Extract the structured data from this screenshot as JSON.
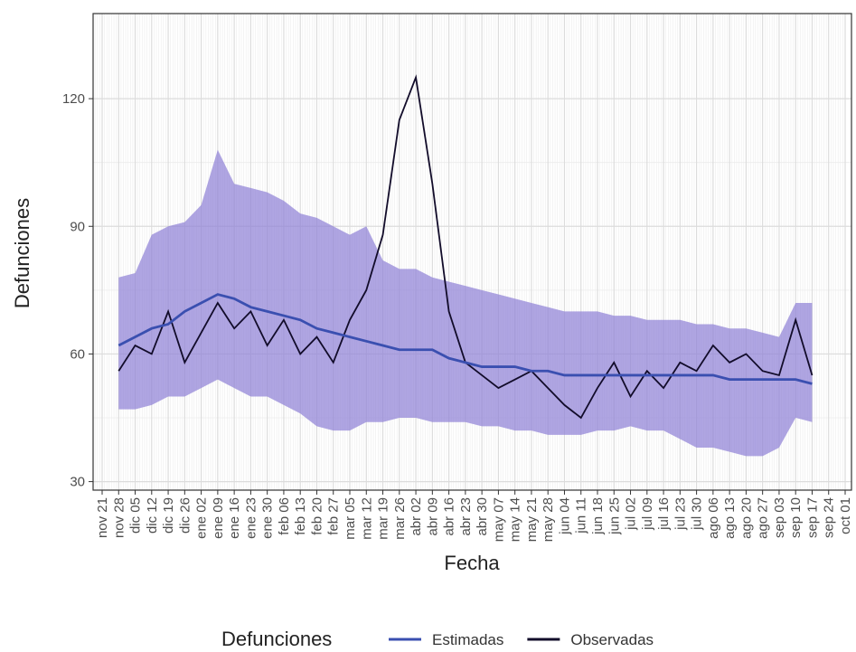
{
  "chart_data": {
    "type": "line",
    "x_label": "Fecha",
    "y_label": "Defunciones",
    "legend_title": "Defunciones",
    "legend_position": "bottom",
    "grid": true,
    "xticks": [
      "nov 21",
      "nov 28",
      "dic 05",
      "dic 12",
      "dic 19",
      "dic 26",
      "ene 02",
      "ene 09",
      "ene 16",
      "ene 23",
      "ene 30",
      "feb 06",
      "feb 13",
      "feb 20",
      "feb 27",
      "mar 05",
      "mar 12",
      "mar 19",
      "mar 26",
      "abr 02",
      "abr 09",
      "abr 16",
      "abr 23",
      "abr 30",
      "may 07",
      "may 14",
      "may 21",
      "may 28",
      "jun 04",
      "jun 11",
      "jun 18",
      "jun 25",
      "jul 02",
      "jul 09",
      "jul 16",
      "jul 23",
      "jul 30",
      "ago 06",
      "ago 13",
      "ago 20",
      "ago 27",
      "sep 03",
      "sep 10",
      "sep 17",
      "sep 24",
      "oct 01"
    ],
    "x": [
      "nov 28",
      "dic 05",
      "dic 12",
      "dic 19",
      "dic 26",
      "ene 02",
      "ene 09",
      "ene 16",
      "ene 23",
      "ene 30",
      "feb 06",
      "feb 13",
      "feb 20",
      "feb 27",
      "mar 05",
      "mar 12",
      "mar 19",
      "mar 26",
      "abr 02",
      "abr 09",
      "abr 16",
      "abr 23",
      "abr 30",
      "may 07",
      "may 14",
      "may 21",
      "may 28",
      "jun 04",
      "jun 11",
      "jun 18",
      "jun 25",
      "jul 02",
      "jul 09",
      "jul 16",
      "jul 23",
      "jul 30",
      "ago 06",
      "ago 13",
      "ago 20",
      "ago 27",
      "sep 03",
      "sep 10",
      "sep 17"
    ],
    "ylim": [
      28,
      140
    ],
    "yticks": [
      30,
      60,
      90,
      120
    ],
    "band": {
      "color": "#8d7fd6",
      "upper": [
        78,
        79,
        88,
        90,
        91,
        95,
        108,
        100,
        99,
        98,
        96,
        93,
        92,
        90,
        88,
        90,
        82,
        80,
        80,
        78,
        77,
        76,
        75,
        74,
        73,
        72,
        71,
        70,
        70,
        70,
        69,
        69,
        68,
        68,
        68,
        67,
        67,
        66,
        66,
        65,
        64,
        72,
        72
      ],
      "lower": [
        47,
        47,
        48,
        50,
        50,
        52,
        54,
        52,
        50,
        50,
        48,
        46,
        43,
        42,
        42,
        44,
        44,
        45,
        45,
        44,
        44,
        44,
        43,
        43,
        42,
        42,
        41,
        41,
        41,
        42,
        42,
        43,
        42,
        42,
        40,
        38,
        38,
        37,
        36,
        36,
        38,
        45,
        44
      ]
    },
    "series": [
      {
        "name": "Estimadas",
        "color": "#3a4fb0",
        "values": [
          62,
          64,
          66,
          67,
          70,
          72,
          74,
          73,
          71,
          70,
          69,
          68,
          66,
          65,
          64,
          63,
          62,
          61,
          61,
          61,
          59,
          58,
          57,
          57,
          57,
          56,
          56,
          55,
          55,
          55,
          55,
          55,
          55,
          55,
          55,
          55,
          55,
          54,
          54,
          54,
          54,
          54,
          53
        ]
      },
      {
        "name": "Observadas",
        "color": "#120c2a",
        "values": [
          56,
          62,
          60,
          70,
          58,
          65,
          72,
          66,
          70,
          62,
          68,
          60,
          64,
          58,
          68,
          75,
          88,
          115,
          125,
          100,
          70,
          58,
          55,
          52,
          54,
          56,
          52,
          48,
          45,
          52,
          58,
          50,
          56,
          52,
          58,
          56,
          62,
          58,
          60,
          56,
          55,
          68,
          55
        ]
      }
    ]
  }
}
